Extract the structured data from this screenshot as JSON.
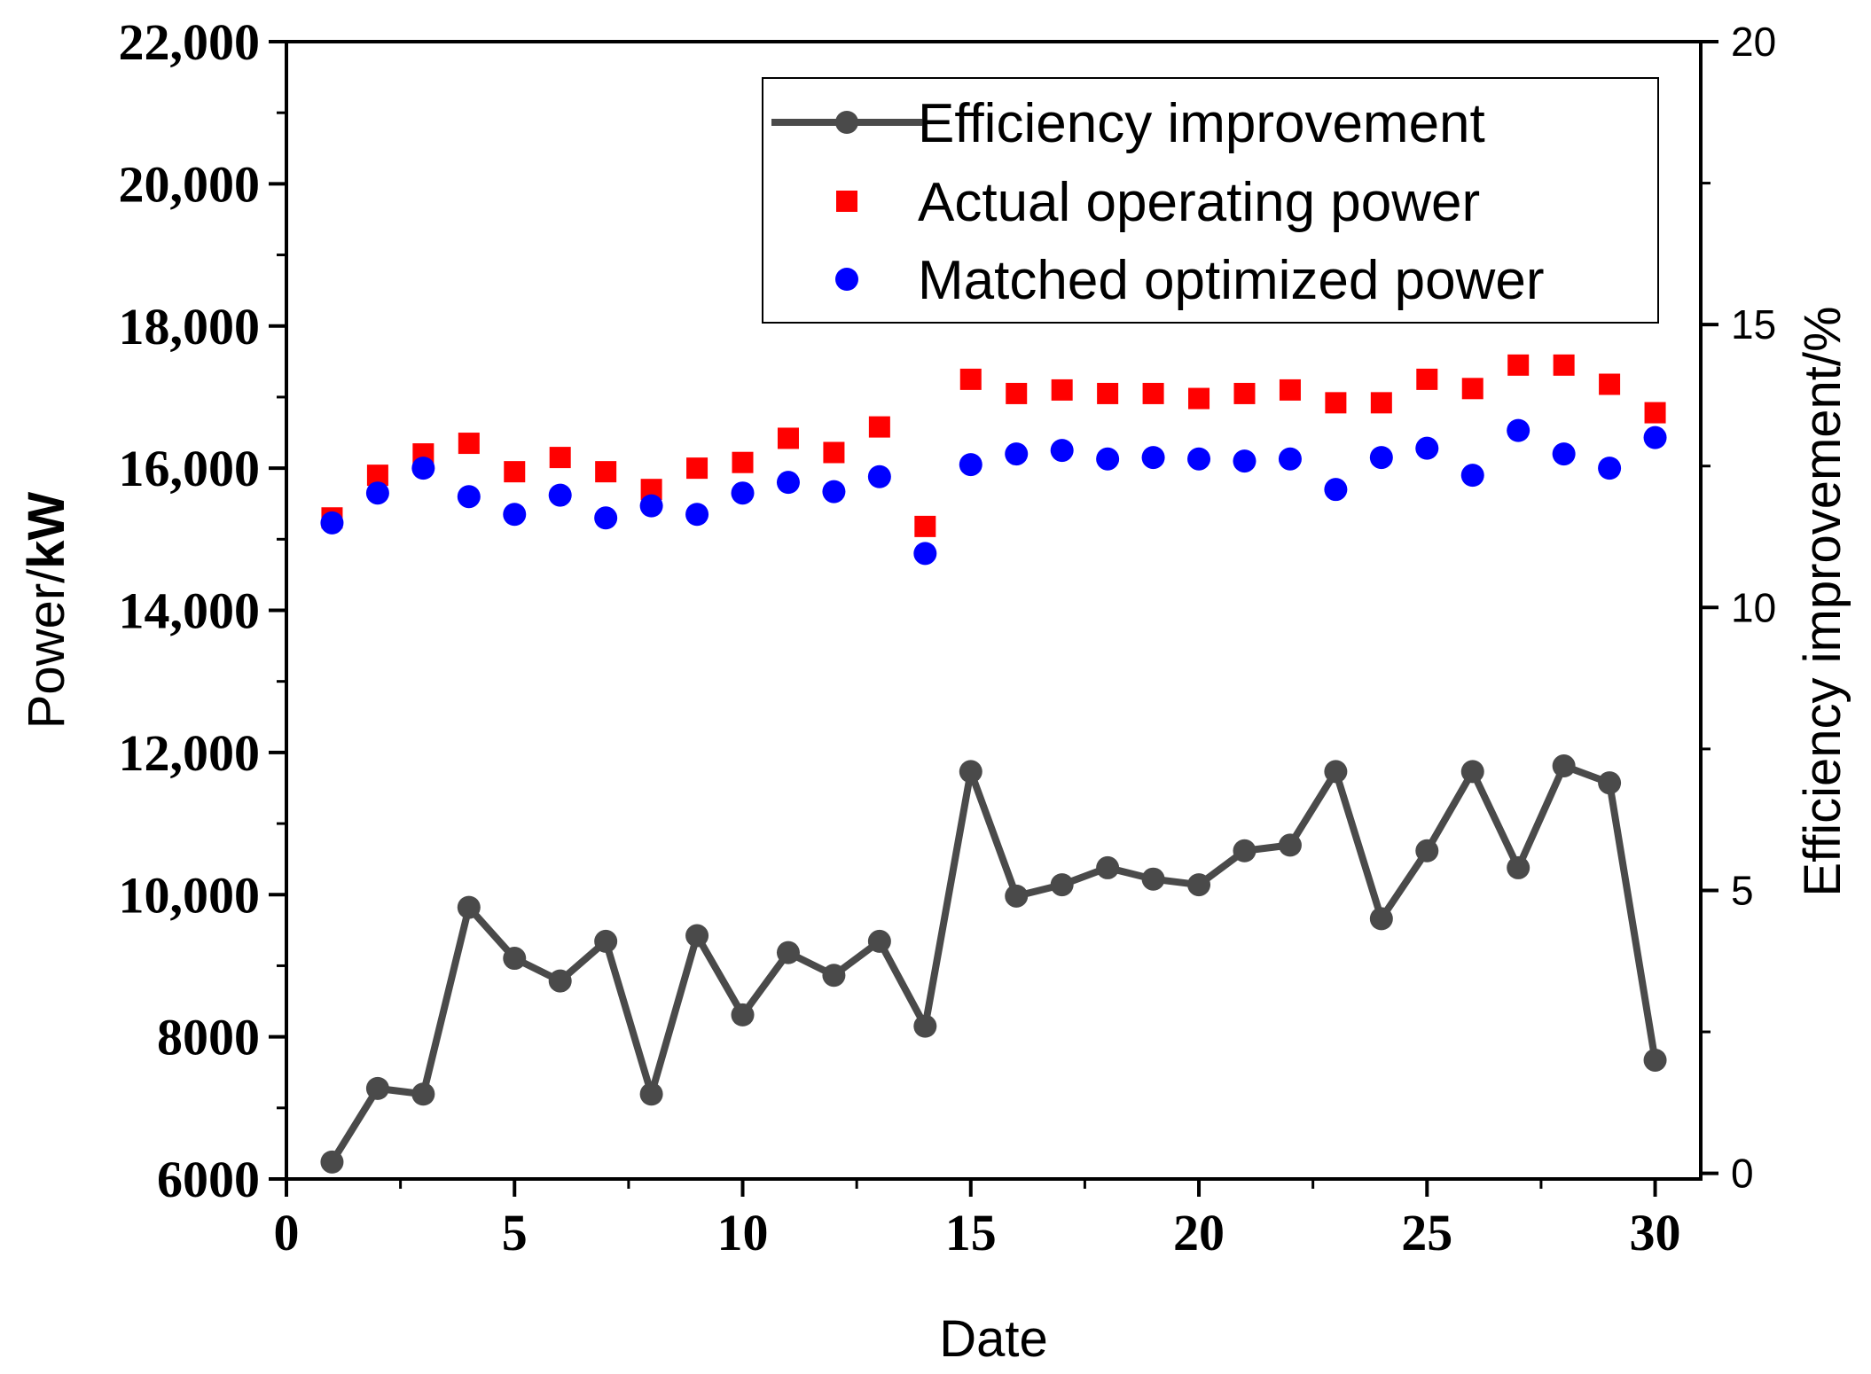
{
  "chart_data": {
    "type": "scatter",
    "x_axis": {
      "label": "Date",
      "range": [
        0,
        31
      ],
      "ticks": [
        0,
        5,
        10,
        15,
        20,
        25,
        30
      ],
      "tick_labels": [
        "0",
        "5",
        "10",
        "15",
        "20",
        "25",
        "30"
      ]
    },
    "y_left": {
      "label_prefix": "Power/",
      "label_unit": "kW",
      "range": [
        6000,
        22000
      ],
      "ticks": [
        6000,
        8000,
        10000,
        12000,
        14000,
        16000,
        18000,
        20000,
        22000
      ],
      "tick_labels": [
        "6000",
        "8000",
        "10,000",
        "12,000",
        "14,000",
        "16,000",
        "18,000",
        "20,000",
        "22,000"
      ]
    },
    "y_right": {
      "label": "Efficiency improvement/%",
      "range": [
        -0.1,
        20
      ],
      "ticks": [
        0,
        5,
        10,
        15,
        20
      ],
      "tick_labels": [
        "0",
        "5",
        "10",
        "15",
        "20"
      ]
    },
    "x": [
      1,
      2,
      3,
      4,
      5,
      6,
      7,
      8,
      9,
      10,
      11,
      12,
      13,
      14,
      15,
      16,
      17,
      18,
      19,
      20,
      21,
      22,
      23,
      24,
      25,
      26,
      27,
      28,
      29,
      30
    ],
    "series": [
      {
        "name": "Efficiency improvement",
        "axis": "right",
        "style": "line-circle",
        "color": "#4a4a4a",
        "values": [
          0.2,
          1.5,
          1.4,
          4.7,
          3.8,
          3.4,
          4.1,
          1.4,
          4.2,
          2.8,
          3.9,
          3.5,
          4.1,
          2.6,
          7.1,
          4.9,
          5.1,
          5.4,
          5.2,
          5.1,
          5.7,
          5.8,
          7.1,
          4.5,
          5.7,
          7.1,
          5.4,
          7.2,
          6.9,
          2.0
        ]
      },
      {
        "name": "Actual operating power",
        "axis": "left",
        "style": "square",
        "color": "#ff0000",
        "values": [
          15300,
          15900,
          16200,
          16350,
          15950,
          16150,
          15950,
          15700,
          16000,
          16080,
          16420,
          16220,
          16580,
          15180,
          17250,
          17050,
          17100,
          17050,
          17050,
          16980,
          17050,
          17100,
          16920,
          16920,
          17250,
          17120,
          17450,
          17450,
          17180,
          16780
        ]
      },
      {
        "name": "Matched optimized power",
        "axis": "left",
        "style": "circle",
        "color": "#0000ff",
        "values": [
          15230,
          15650,
          16000,
          15600,
          15350,
          15620,
          15300,
          15470,
          15350,
          15650,
          15800,
          15670,
          15880,
          14800,
          16050,
          16200,
          16250,
          16130,
          16150,
          16130,
          16100,
          16130,
          15700,
          16150,
          16280,
          15900,
          16530,
          16200,
          16000,
          16430
        ]
      }
    ],
    "legend": {
      "position": "top-right",
      "frame": true
    }
  }
}
